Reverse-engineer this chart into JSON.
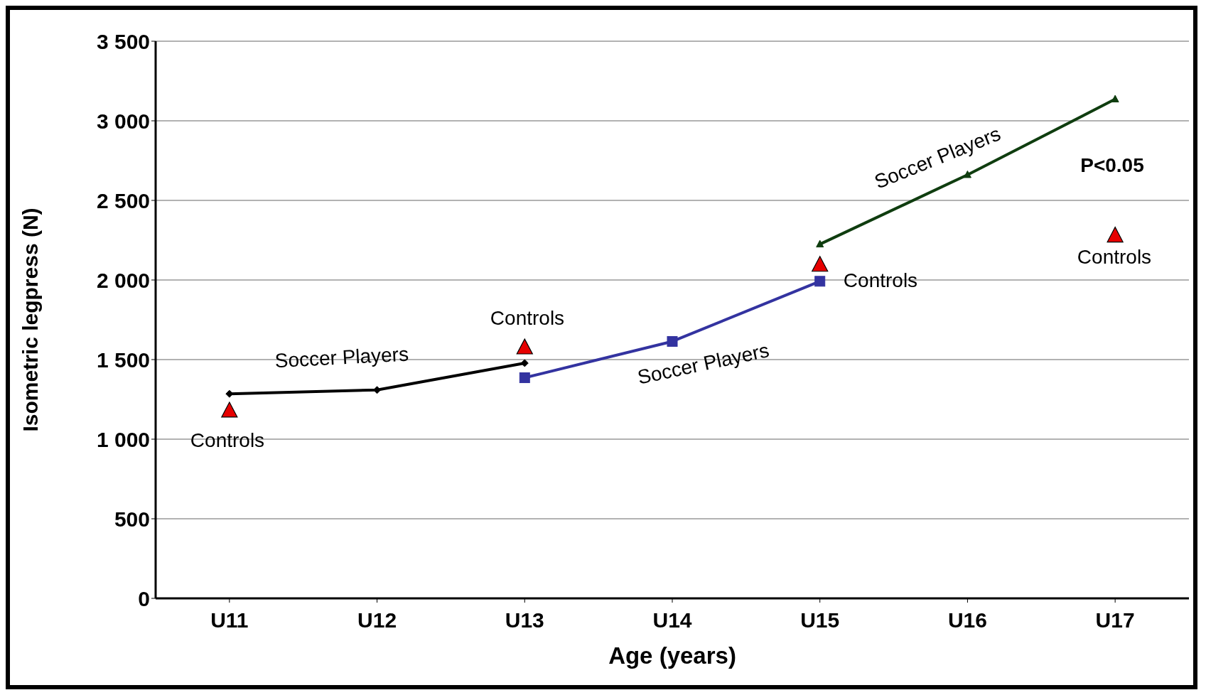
{
  "chart_data": {
    "type": "line",
    "xlabel": "Age (years)",
    "ylabel": "Isometric legpress (N)",
    "categories": [
      "U11",
      "U12",
      "U13",
      "U14",
      "U15",
      "U16",
      "U17"
    ],
    "series": [
      {
        "color": "#000000",
        "marker": "diamond",
        "values": [
          1285,
          1309,
          1478,
          null,
          null,
          null,
          null
        ]
      },
      {
        "color": "#3333a0",
        "marker": "square",
        "values": [
          null,
          null,
          1386,
          1614,
          1992,
          null,
          null
        ]
      },
      {
        "color": "#0f3d0f",
        "marker": "triangle",
        "values": [
          null,
          null,
          null,
          null,
          2225,
          2661,
          3136
        ]
      },
      {
        "type": "scatter",
        "color": "#e60000",
        "marker": "triangle",
        "values": [
          1178,
          null,
          1575,
          null,
          2094,
          null,
          2278
        ]
      }
    ],
    "ylim": [
      0,
      3500
    ],
    "yticks": [
      0,
      500,
      {
        "value": 1000,
        "label": "1 000"
      },
      {
        "value": 1500,
        "label": "1 500"
      },
      {
        "value": 2000,
        "label": "2 000"
      },
      {
        "value": 2500,
        "label": "2 500"
      },
      {
        "value": 3000,
        "label": "3 000"
      },
      {
        "value": 3500,
        "label": "3 500"
      }
    ],
    "grid": "y",
    "annotations": [
      "Controls",
      "Soccer Players",
      "Controls",
      "Soccer Players",
      "Controls",
      "Soccer Players",
      "P<0.05",
      "Controls"
    ]
  }
}
